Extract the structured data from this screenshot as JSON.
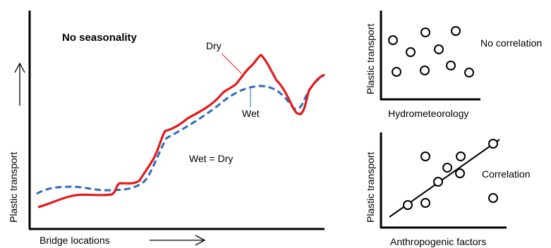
{
  "main_panel": {
    "title": "No seasonality",
    "x_axis_label": "Bridge locations",
    "y_axis_label": "Plastic transport",
    "dry_label": "Dry",
    "wet_label": "Wet",
    "equality_label": "Wet = Dry",
    "colors": {
      "dry": "#e31a1c",
      "wet": "#2e6bbf",
      "axis": "#000000"
    }
  },
  "top_right_panel": {
    "x_axis_label": "Hydrometeorology",
    "y_axis_label": "Plastic transport",
    "result_label": "No correlation"
  },
  "bottom_right_panel": {
    "x_axis_label": "Anthropogenic  factors",
    "y_axis_label": "Plastic transport",
    "result_label": "Correlation"
  }
}
